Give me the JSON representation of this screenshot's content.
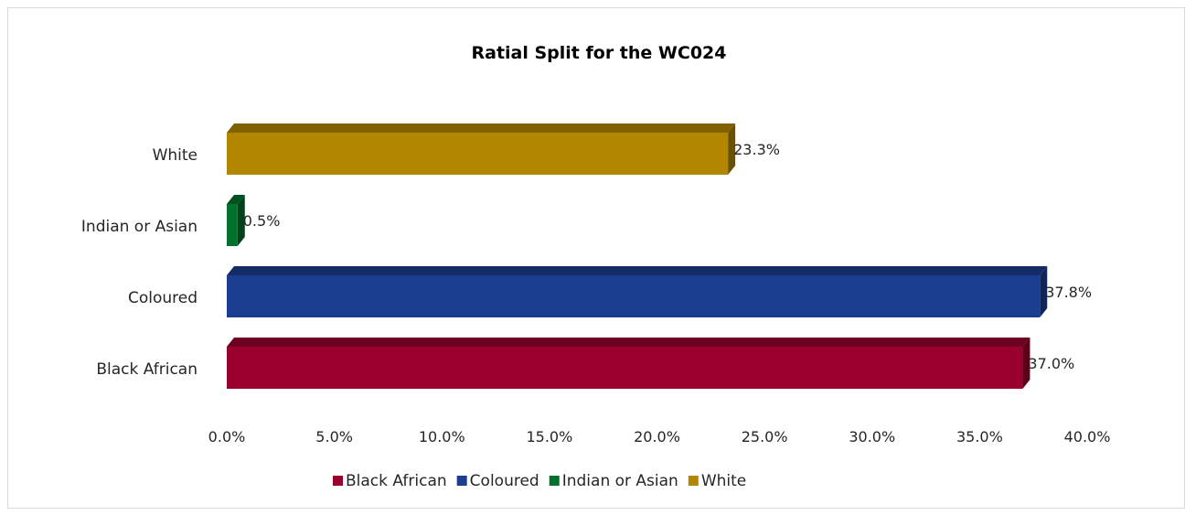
{
  "chart_data": {
    "type": "bar",
    "orientation": "horizontal",
    "title": "Ratial Split for the WC024",
    "xlabel": "",
    "ylabel": "",
    "xlim": [
      0,
      40
    ],
    "x_ticks": [
      "0.0%",
      "5.0%",
      "10.0%",
      "15.0%",
      "20.0%",
      "25.0%",
      "30.0%",
      "35.0%",
      "40.0%"
    ],
    "categories": [
      "Black African",
      "Coloured",
      "Indian or Asian",
      "White"
    ],
    "values": [
      37.0,
      37.8,
      0.5,
      23.3
    ],
    "data_labels": [
      "37.0%",
      "37.8%",
      "0.5%",
      "23.3%"
    ],
    "colors": [
      "#99002e",
      "#1a3d8f",
      "#00702b",
      "#b38600"
    ],
    "grid": false,
    "legend_position": "bottom",
    "legend": [
      "Black African",
      "Coloured",
      "Indian or Asian",
      "White"
    ]
  }
}
